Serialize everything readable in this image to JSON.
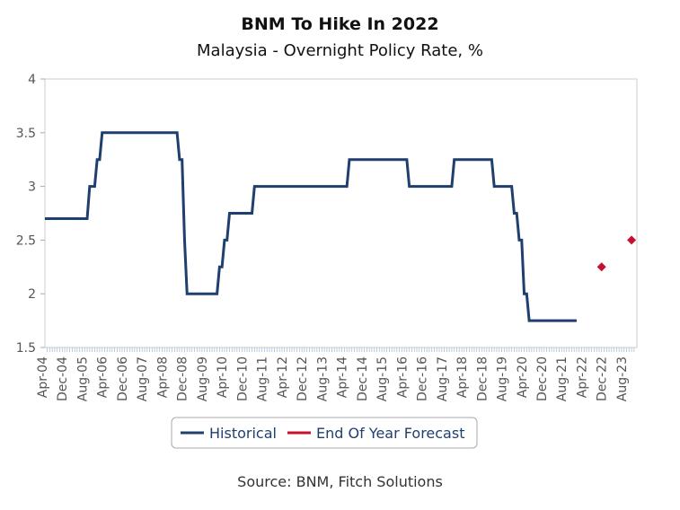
{
  "chart_data": {
    "type": "line",
    "title": "BNM To Hike In 2022",
    "subtitle": "Malaysia - Overnight Policy Rate, %",
    "source": "Source: BNM, Fitch Solutions",
    "ylim": [
      1.5,
      4
    ],
    "yticks": [
      "1.5",
      "2",
      "2.5",
      "3",
      "3.5",
      "4"
    ],
    "xlabels": [
      "Apr-04",
      "Dec-04",
      "Aug-05",
      "Apr-06",
      "Dec-06",
      "Aug-07",
      "Apr-08",
      "Dec-08",
      "Aug-09",
      "Apr-10",
      "Dec-10",
      "Aug-11",
      "Apr-12",
      "Dec-12",
      "Aug-13",
      "Apr-14",
      "Dec-14",
      "Aug-15",
      "Apr-16",
      "Dec-16",
      "Aug-17",
      "Apr-18",
      "Dec-18",
      "Aug-19",
      "Apr-20",
      "Dec-20",
      "Aug-21",
      "Apr-22",
      "Dec-22",
      "Aug-23"
    ],
    "grid": false,
    "legend_placement": "bottom",
    "series": [
      {
        "name": "Historical",
        "color": "#1f3f6e",
        "style": "step-line",
        "points": [
          [
            "2004-04",
            2.7
          ],
          [
            "2005-11",
            3.0
          ],
          [
            "2006-02",
            3.25
          ],
          [
            "2006-04",
            3.5
          ],
          [
            "2008-11",
            3.25
          ],
          [
            "2009-01",
            2.5
          ],
          [
            "2009-02",
            2.0
          ],
          [
            "2010-03",
            2.25
          ],
          [
            "2010-05",
            2.5
          ],
          [
            "2010-07",
            2.75
          ],
          [
            "2011-05",
            3.0
          ],
          [
            "2014-07",
            3.25
          ],
          [
            "2016-07",
            3.0
          ],
          [
            "2018-01",
            3.25
          ],
          [
            "2019-05",
            3.0
          ],
          [
            "2020-01",
            2.75
          ],
          [
            "2020-03",
            2.5
          ],
          [
            "2020-05",
            2.0
          ],
          [
            "2020-07",
            1.75
          ],
          [
            "2022-02",
            1.75
          ]
        ]
      },
      {
        "name": "End Of Year Forecast",
        "color": "#c8102e",
        "style": "diamond-markers",
        "points": [
          [
            "2022-12",
            2.25
          ],
          [
            "2023-12",
            2.5
          ]
        ]
      }
    ]
  }
}
